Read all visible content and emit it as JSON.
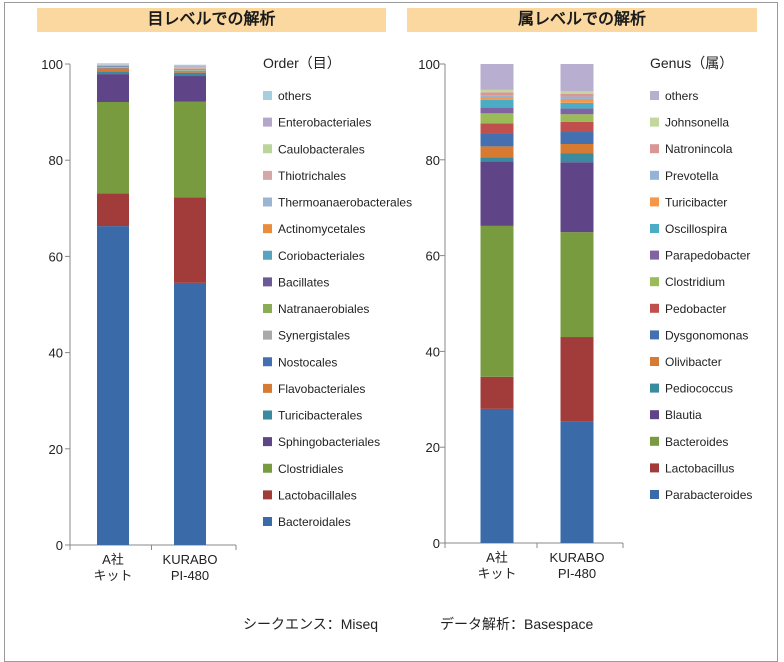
{
  "charts": [
    {
      "panel_title": "目レベルでの解析"
    },
    {
      "panel_title": "属レベルでの解析"
    }
  ],
  "footer": {
    "sequencer": "シークエンス：Miseq",
    "analysis": "データ解析：Basespace"
  },
  "chart_data": [
    {
      "type": "bar",
      "stacked": true,
      "title": "目レベルでの解析",
      "legend_title": "Order（目）",
      "legend_position": "right",
      "categories": [
        [
          "A社",
          "キット"
        ],
        [
          "KURABO",
          "PI-480"
        ]
      ],
      "ylim": [
        0,
        100
      ],
      "yticks": [
        0,
        20,
        40,
        60,
        80,
        100
      ],
      "grid": false,
      "series": [
        {
          "name": "Bacteroidales",
          "color": "#3a6aa8",
          "values": [
            66.3,
            54.5
          ]
        },
        {
          "name": "Lactobacillales",
          "color": "#a23c3a",
          "values": [
            6.8,
            17.8
          ]
        },
        {
          "name": "Clostridiales",
          "color": "#789b3f",
          "values": [
            19.0,
            19.9
          ]
        },
        {
          "name": "Sphingobacteriales",
          "color": "#5f4487",
          "values": [
            5.8,
            5.3
          ]
        },
        {
          "name": "Turicibacterales",
          "color": "#3a8aa0",
          "values": [
            0.6,
            0.7
          ]
        },
        {
          "name": "Flavobacteriales",
          "color": "#d77b32",
          "values": [
            0.6,
            0.3
          ]
        },
        {
          "name": "Nostocales",
          "color": "#4570b0",
          "values": [
            0.1,
            0.1
          ]
        },
        {
          "name": "Synergistales",
          "color": "#a9a9a9",
          "values": [
            0.1,
            0.1
          ]
        },
        {
          "name": "Natranaerobiales",
          "color": "#8aac54",
          "values": [
            0.1,
            0.1
          ]
        },
        {
          "name": "Bacillates",
          "color": "#6c5a96",
          "values": [
            0.1,
            0.1
          ]
        },
        {
          "name": "Coriobacteriales",
          "color": "#58a3c0",
          "values": [
            0.1,
            0.1
          ]
        },
        {
          "name": "Actinomycetales",
          "color": "#eb8b3c",
          "values": [
            0.1,
            0.1
          ]
        },
        {
          "name": "Thermoanaerobacterales",
          "color": "#9cb4d4",
          "values": [
            0.05,
            0.05
          ]
        },
        {
          "name": "Thiotrichales",
          "color": "#d4a8a8",
          "values": [
            0.05,
            0.05
          ]
        },
        {
          "name": "Caulobacterales",
          "color": "#bbd49a",
          "values": [
            0.05,
            0.05
          ]
        },
        {
          "name": "Enterobacteriales",
          "color": "#b3a6c8",
          "values": [
            0.1,
            0.3
          ]
        },
        {
          "name": "others",
          "color": "#a5cfe0",
          "values": [
            0.2,
            0.3
          ]
        }
      ]
    },
    {
      "type": "bar",
      "stacked": true,
      "title": "属レベルでの解析",
      "legend_title": "Genus（属）",
      "legend_position": "right",
      "categories": [
        [
          "A社",
          "キット"
        ],
        [
          "KURABO",
          "PI-480"
        ]
      ],
      "ylim": [
        0,
        100
      ],
      "yticks": [
        0,
        20,
        40,
        60,
        80,
        100
      ],
      "grid": false,
      "series": [
        {
          "name": "Parabacteroides",
          "color": "#3a6aa8",
          "values": [
            28.0,
            25.3
          ]
        },
        {
          "name": "Lactobacillus",
          "color": "#a23c3a",
          "values": [
            6.7,
            17.7
          ]
        },
        {
          "name": "Bacteroides",
          "color": "#789b3f",
          "values": [
            31.5,
            21.9
          ]
        },
        {
          "name": "Blautia",
          "color": "#5f4487",
          "values": [
            13.5,
            14.6
          ]
        },
        {
          "name": "Pediococcus",
          "color": "#3a8aa0",
          "values": [
            0.8,
            1.9
          ]
        },
        {
          "name": "Olivibacter",
          "color": "#d77b32",
          "values": [
            2.3,
            1.9
          ]
        },
        {
          "name": "Dysgonomonas",
          "color": "#4570b0",
          "values": [
            2.7,
            2.5
          ]
        },
        {
          "name": "Pedobacter",
          "color": "#c0504d",
          "values": [
            2.1,
            2.1
          ]
        },
        {
          "name": "Clostridium",
          "color": "#9bbb59",
          "values": [
            2.1,
            1.6
          ]
        },
        {
          "name": "Parapedobacter",
          "color": "#8064a2",
          "values": [
            1.2,
            1.2
          ]
        },
        {
          "name": "Oscillospira",
          "color": "#4bacc6",
          "values": [
            1.6,
            1.2
          ]
        },
        {
          "name": "Turicibacter",
          "color": "#f79646",
          "values": [
            0.5,
            0.8
          ]
        },
        {
          "name": "Prevotella",
          "color": "#95b3d7",
          "values": [
            0.5,
            0.5
          ]
        },
        {
          "name": "Natronincola",
          "color": "#d99694",
          "values": [
            0.6,
            0.6
          ]
        },
        {
          "name": "Johnsonella",
          "color": "#c3d69b",
          "values": [
            0.5,
            0.5
          ]
        },
        {
          "name": "others",
          "color": "#b7aed0",
          "values": [
            5.4,
            5.7
          ]
        }
      ]
    }
  ]
}
